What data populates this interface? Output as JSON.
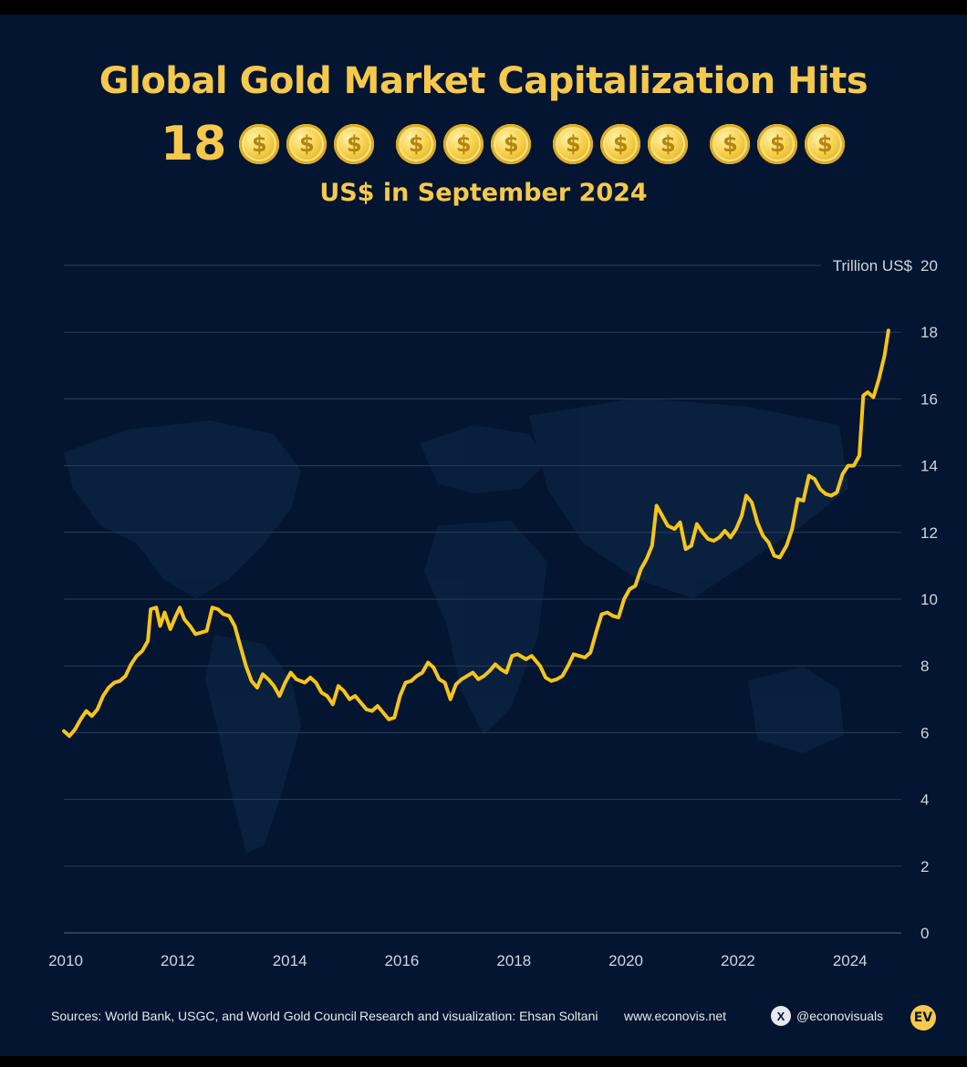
{
  "header": {
    "title": "Global Gold Market Capitalization Hits",
    "big_number": "18",
    "coin_symbol": "$",
    "subtitle": "US$ in September 2024"
  },
  "colors": {
    "background": "#031530",
    "gold": "#f6c94c",
    "line": "#f5c518",
    "grid": "#3a4a62",
    "text": "#e6e9f0"
  },
  "chart_data": {
    "type": "line",
    "title": "Global Gold Market Capitalization Hits 18 trillion US$ in September 2024",
    "ylabel": "Trillion US$",
    "xlabel": "",
    "ylim": [
      0,
      20
    ],
    "xlim": [
      2010,
      2024.9
    ],
    "yticks": [
      0,
      2,
      4,
      6,
      8,
      10,
      12,
      14,
      16,
      18,
      20
    ],
    "xticks": [
      2010,
      2012,
      2014,
      2016,
      2018,
      2020,
      2022,
      2024
    ],
    "grid": true,
    "series": [
      {
        "name": "Gold market capitalization",
        "points": [
          [
            2010.0,
            6.05
          ],
          [
            2010.1,
            5.9
          ],
          [
            2010.2,
            6.1
          ],
          [
            2010.3,
            6.4
          ],
          [
            2010.4,
            6.65
          ],
          [
            2010.5,
            6.5
          ],
          [
            2010.6,
            6.7
          ],
          [
            2010.7,
            7.1
          ],
          [
            2010.8,
            7.35
          ],
          [
            2010.9,
            7.5
          ],
          [
            2011.0,
            7.55
          ],
          [
            2011.1,
            7.7
          ],
          [
            2011.2,
            8.05
          ],
          [
            2011.3,
            8.3
          ],
          [
            2011.4,
            8.45
          ],
          [
            2011.5,
            8.75
          ],
          [
            2011.55,
            9.7
          ],
          [
            2011.65,
            9.75
          ],
          [
            2011.72,
            9.2
          ],
          [
            2011.8,
            9.6
          ],
          [
            2011.9,
            9.1
          ],
          [
            2012.0,
            9.5
          ],
          [
            2012.07,
            9.75
          ],
          [
            2012.15,
            9.4
          ],
          [
            2012.25,
            9.2
          ],
          [
            2012.35,
            8.95
          ],
          [
            2012.45,
            9.0
          ],
          [
            2012.55,
            9.05
          ],
          [
            2012.65,
            9.75
          ],
          [
            2012.75,
            9.7
          ],
          [
            2012.85,
            9.55
          ],
          [
            2012.95,
            9.5
          ],
          [
            2013.05,
            9.2
          ],
          [
            2013.15,
            8.6
          ],
          [
            2013.25,
            8.0
          ],
          [
            2013.35,
            7.55
          ],
          [
            2013.45,
            7.35
          ],
          [
            2013.55,
            7.75
          ],
          [
            2013.65,
            7.6
          ],
          [
            2013.75,
            7.4
          ],
          [
            2013.85,
            7.1
          ],
          [
            2013.95,
            7.5
          ],
          [
            2014.05,
            7.8
          ],
          [
            2014.15,
            7.6
          ],
          [
            2014.3,
            7.5
          ],
          [
            2014.4,
            7.65
          ],
          [
            2014.5,
            7.5
          ],
          [
            2014.6,
            7.2
          ],
          [
            2014.7,
            7.1
          ],
          [
            2014.8,
            6.85
          ],
          [
            2014.9,
            7.4
          ],
          [
            2015.0,
            7.25
          ],
          [
            2015.1,
            7.0
          ],
          [
            2015.2,
            7.1
          ],
          [
            2015.3,
            6.9
          ],
          [
            2015.4,
            6.7
          ],
          [
            2015.5,
            6.65
          ],
          [
            2015.6,
            6.8
          ],
          [
            2015.7,
            6.6
          ],
          [
            2015.8,
            6.4
          ],
          [
            2015.9,
            6.45
          ],
          [
            2016.0,
            7.1
          ],
          [
            2016.1,
            7.5
          ],
          [
            2016.2,
            7.55
          ],
          [
            2016.3,
            7.7
          ],
          [
            2016.4,
            7.8
          ],
          [
            2016.5,
            8.1
          ],
          [
            2016.6,
            7.95
          ],
          [
            2016.7,
            7.6
          ],
          [
            2016.8,
            7.5
          ],
          [
            2016.9,
            7.0
          ],
          [
            2017.0,
            7.45
          ],
          [
            2017.1,
            7.6
          ],
          [
            2017.2,
            7.7
          ],
          [
            2017.3,
            7.8
          ],
          [
            2017.4,
            7.6
          ],
          [
            2017.5,
            7.7
          ],
          [
            2017.6,
            7.85
          ],
          [
            2017.7,
            8.05
          ],
          [
            2017.8,
            7.9
          ],
          [
            2017.9,
            7.8
          ],
          [
            2018.0,
            8.3
          ],
          [
            2018.1,
            8.35
          ],
          [
            2018.25,
            8.2
          ],
          [
            2018.35,
            8.3
          ],
          [
            2018.5,
            8.0
          ],
          [
            2018.6,
            7.65
          ],
          [
            2018.7,
            7.55
          ],
          [
            2018.8,
            7.6
          ],
          [
            2018.9,
            7.7
          ],
          [
            2019.0,
            8.0
          ],
          [
            2019.1,
            8.35
          ],
          [
            2019.2,
            8.3
          ],
          [
            2019.3,
            8.25
          ],
          [
            2019.4,
            8.4
          ],
          [
            2019.5,
            9.0
          ],
          [
            2019.6,
            9.55
          ],
          [
            2019.7,
            9.6
          ],
          [
            2019.8,
            9.5
          ],
          [
            2019.9,
            9.45
          ],
          [
            2020.0,
            10.0
          ],
          [
            2020.1,
            10.3
          ],
          [
            2020.2,
            10.4
          ],
          [
            2020.3,
            10.9
          ],
          [
            2020.4,
            11.2
          ],
          [
            2020.5,
            11.6
          ],
          [
            2020.58,
            12.8
          ],
          [
            2020.68,
            12.5
          ],
          [
            2020.78,
            12.2
          ],
          [
            2020.9,
            12.1
          ],
          [
            2021.0,
            12.3
          ],
          [
            2021.1,
            11.5
          ],
          [
            2021.2,
            11.6
          ],
          [
            2021.3,
            12.25
          ],
          [
            2021.4,
            12.0
          ],
          [
            2021.5,
            11.8
          ],
          [
            2021.6,
            11.75
          ],
          [
            2021.7,
            11.85
          ],
          [
            2021.8,
            12.05
          ],
          [
            2021.9,
            11.85
          ],
          [
            2022.0,
            12.1
          ],
          [
            2022.1,
            12.5
          ],
          [
            2022.18,
            13.1
          ],
          [
            2022.28,
            12.9
          ],
          [
            2022.38,
            12.3
          ],
          [
            2022.48,
            11.9
          ],
          [
            2022.58,
            11.7
          ],
          [
            2022.68,
            11.3
          ],
          [
            2022.78,
            11.25
          ],
          [
            2022.9,
            11.6
          ],
          [
            2023.0,
            12.1
          ],
          [
            2023.1,
            13.0
          ],
          [
            2023.2,
            12.95
          ],
          [
            2023.3,
            13.7
          ],
          [
            2023.4,
            13.6
          ],
          [
            2023.5,
            13.3
          ],
          [
            2023.6,
            13.15
          ],
          [
            2023.7,
            13.1
          ],
          [
            2023.8,
            13.2
          ],
          [
            2023.9,
            13.75
          ],
          [
            2024.0,
            14.0
          ],
          [
            2024.1,
            14.0
          ],
          [
            2024.2,
            14.3
          ],
          [
            2024.27,
            16.1
          ],
          [
            2024.35,
            16.2
          ],
          [
            2024.45,
            16.05
          ],
          [
            2024.55,
            16.6
          ],
          [
            2024.65,
            17.3
          ],
          [
            2024.72,
            18.05
          ]
        ]
      }
    ]
  },
  "footer": {
    "sources": "Sources: World Bank, USGC, and World Gold Council",
    "credit": "Research and visualization: Ehsan Soltani",
    "website": "www.econovis.net",
    "x_glyph": "X",
    "handle": "@econovisuals",
    "logo": "EV"
  }
}
